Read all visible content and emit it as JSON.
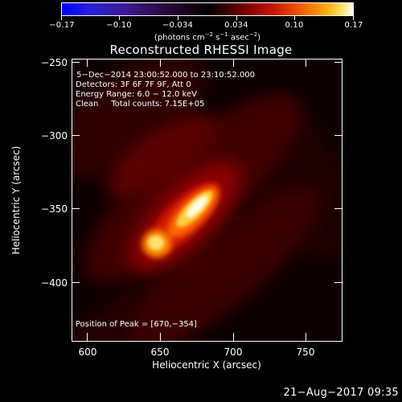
{
  "colorbar": {
    "ticks": [
      "−0.17",
      "−0.10",
      "−0.034",
      "0.034",
      "0.10",
      "0.17"
    ],
    "units_main": "(photons cm",
    "units_exp1": "−2",
    "units_mid1": " s",
    "units_exp2": "−1",
    "units_mid2": " asec",
    "units_exp3": "−2",
    "units_end": ")"
  },
  "title": "Reconstructed RHESSI Image",
  "info": {
    "time": " 5−Dec−2014 23:00:52.000 to 23:10:52.000",
    "detectors": "Detectors: 3F 6F 7F 9F, Att 0",
    "energy": "Energy Range: 6.0 − 12.0 keV",
    "clean": "Clean     Total counts: 7.15E+05",
    "peak": "Position of Peak = [670,−354]"
  },
  "axes": {
    "xlabel": "Heliocentric X (arcsec)",
    "ylabel": "Heliocentric Y (arcsec)",
    "xticks": [
      "600",
      "650",
      "700",
      "750"
    ],
    "yticks": [
      "−250",
      "−300",
      "−350",
      "−400"
    ]
  },
  "timestamp": "21−Aug−2017 09:35"
}
